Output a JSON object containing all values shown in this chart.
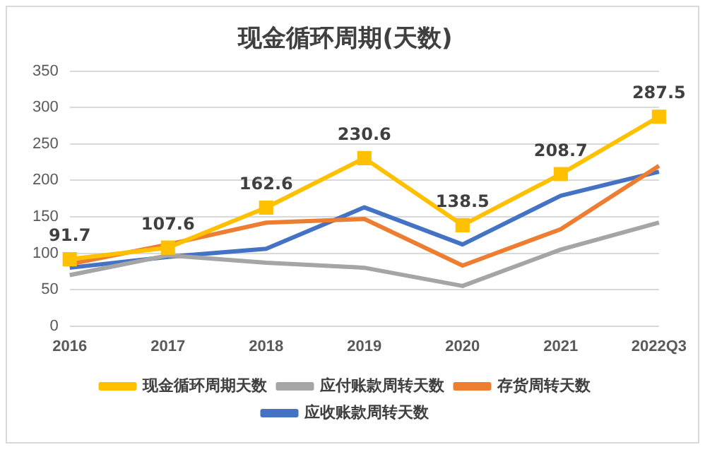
{
  "chart_data": {
    "type": "line",
    "title": "现金循环周期(天数)",
    "categories": [
      "2016",
      "2017",
      "2018",
      "2019",
      "2020",
      "2021",
      "2022Q3"
    ],
    "series": [
      {
        "name": "应收账款周转天数",
        "color": "#4472c4",
        "values": [
          80,
          95,
          106,
          163,
          112,
          179,
          212
        ],
        "marker": "none"
      },
      {
        "name": "存货周转天数",
        "color": "#ed7d31",
        "values": [
          85,
          112,
          142,
          147,
          83,
          133,
          220
        ],
        "marker": "none"
      },
      {
        "name": "应付账款周转天数",
        "color": "#a5a5a5",
        "values": [
          70,
          97,
          87,
          80,
          55,
          105,
          142
        ],
        "marker": "none"
      },
      {
        "name": "现金循环周期天数",
        "color": "#ffc000",
        "values": [
          91.7,
          107.6,
          162.6,
          230.6,
          138.5,
          208.7,
          287.5
        ],
        "marker": "square",
        "value_labels": [
          "91.7",
          "107.6",
          "162.6",
          "230.6",
          "138.5",
          "208.7",
          "287.5"
        ]
      }
    ],
    "ylim": [
      0,
      350
    ],
    "yticks": [
      0,
      50,
      100,
      150,
      200,
      250,
      300,
      350
    ],
    "grid": "y",
    "legend": "bottom"
  }
}
